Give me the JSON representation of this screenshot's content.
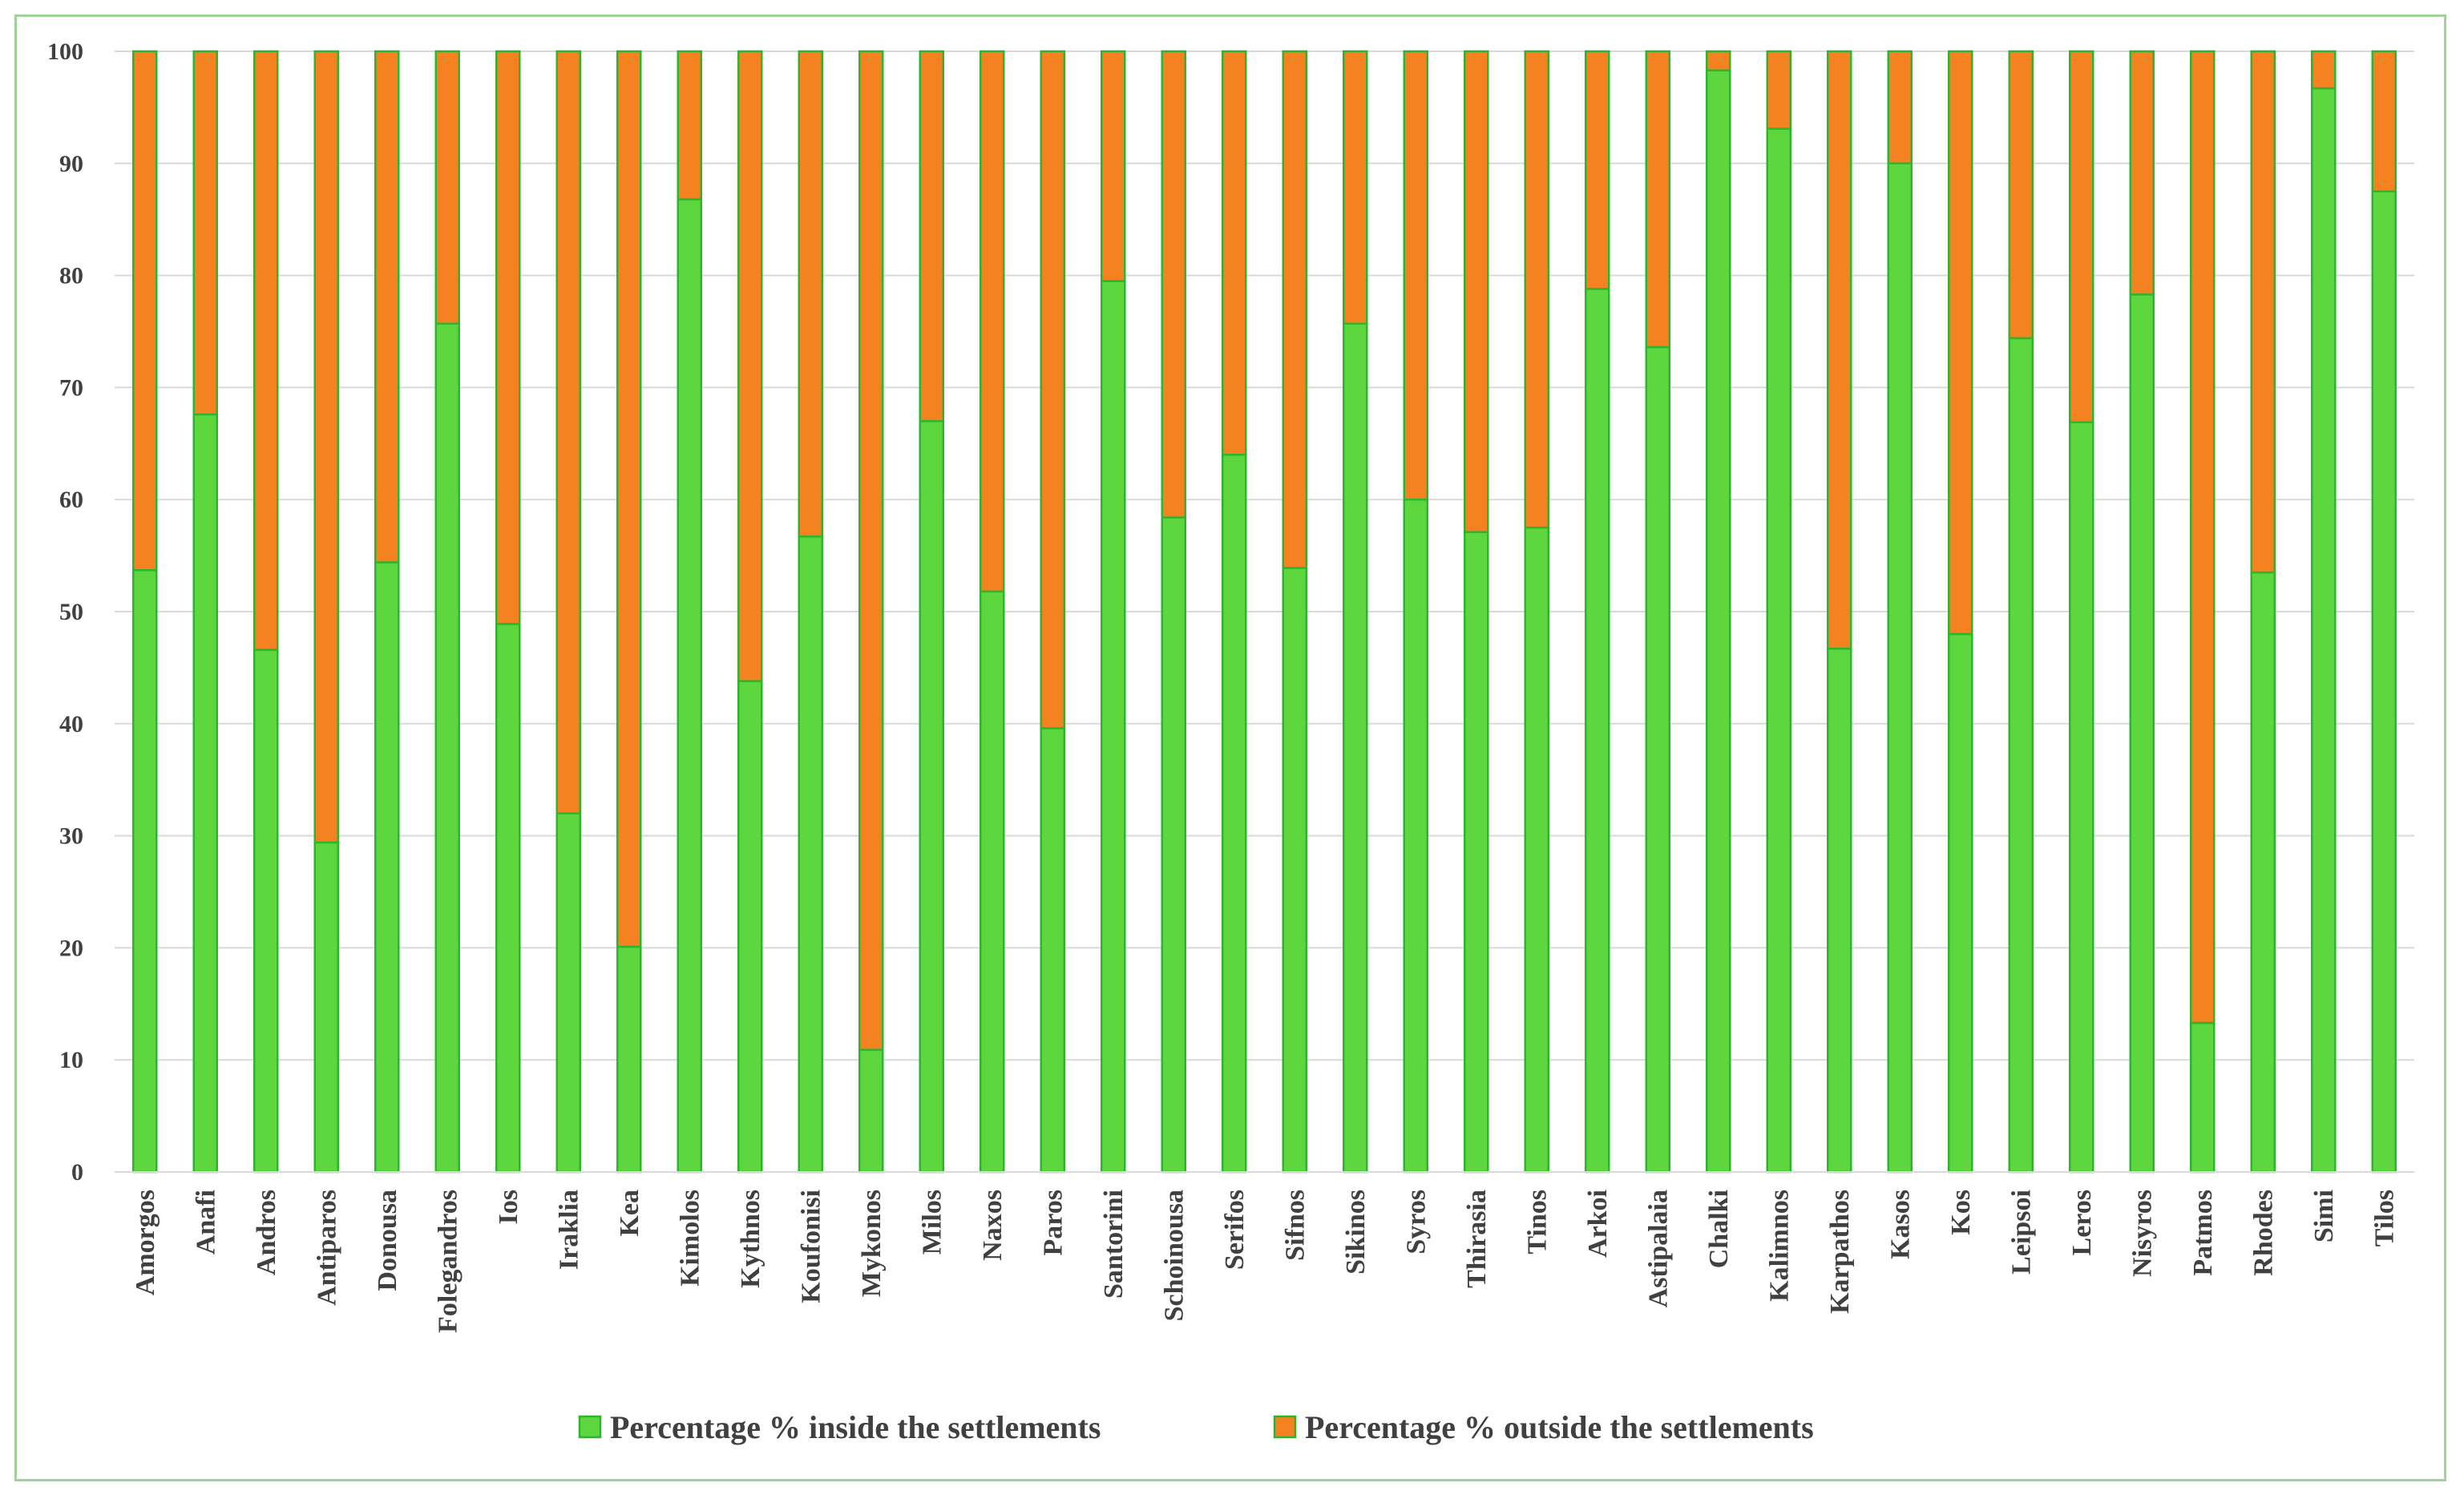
{
  "chart_data": {
    "type": "bar",
    "stacked": true,
    "title": "",
    "xlabel": "",
    "ylabel": "",
    "ylim": [
      0,
      100
    ],
    "yticks": [
      0,
      10,
      20,
      30,
      40,
      50,
      60,
      70,
      80,
      90,
      100
    ],
    "grid": true,
    "legend_position": "bottom",
    "categories": [
      "Amorgos",
      "Anafi",
      "Andros",
      "Antiparos",
      "Donousa",
      "Folegandros",
      "Ios",
      "Iraklia",
      "Kea",
      "Kimolos",
      "Kythnos",
      "Koufonisi",
      "Mykonos",
      "Milos",
      "Naxos",
      "Paros",
      "Santorini",
      "Schoinousa",
      "Serifos",
      "Sifnos",
      "Sikinos",
      "Syros",
      "Thirasia",
      "Tinos",
      "Arkoi",
      "Astipalaia",
      "Chalki",
      "Kalimnos",
      "Karpathos",
      "Kasos",
      "Kos",
      "Leipsoi",
      "Leros",
      "Nisyros",
      "Patmos",
      "Rhodes",
      "Simi",
      "Tilos"
    ],
    "series": [
      {
        "name": "Percentage % inside the settlements",
        "color": "#5ed63e",
        "edge": "#2db52d",
        "values": [
          53.7,
          67.6,
          46.6,
          29.4,
          54.4,
          75.7,
          48.9,
          32.0,
          20.1,
          86.8,
          43.8,
          56.7,
          10.9,
          67.0,
          51.8,
          39.6,
          79.5,
          58.4,
          64.0,
          53.9,
          75.7,
          60.0,
          57.1,
          57.5,
          78.8,
          73.6,
          98.3,
          93.1,
          46.7,
          90.0,
          48.0,
          74.4,
          66.9,
          78.3,
          13.3,
          53.5,
          96.7,
          87.5
        ]
      },
      {
        "name": "Percentage % outside the settlements",
        "color": "#f58220",
        "edge": "#2db52d",
        "values": [
          46.3,
          32.4,
          53.4,
          70.6,
          45.6,
          24.3,
          51.1,
          68.0,
          79.9,
          13.2,
          56.2,
          43.3,
          89.1,
          33.0,
          48.2,
          60.4,
          20.5,
          41.6,
          36.0,
          46.1,
          24.3,
          40.0,
          42.9,
          42.5,
          21.2,
          26.4,
          1.7,
          6.9,
          53.3,
          10.0,
          52.0,
          25.6,
          33.1,
          21.7,
          86.7,
          46.5,
          3.3,
          12.5
        ]
      }
    ]
  }
}
